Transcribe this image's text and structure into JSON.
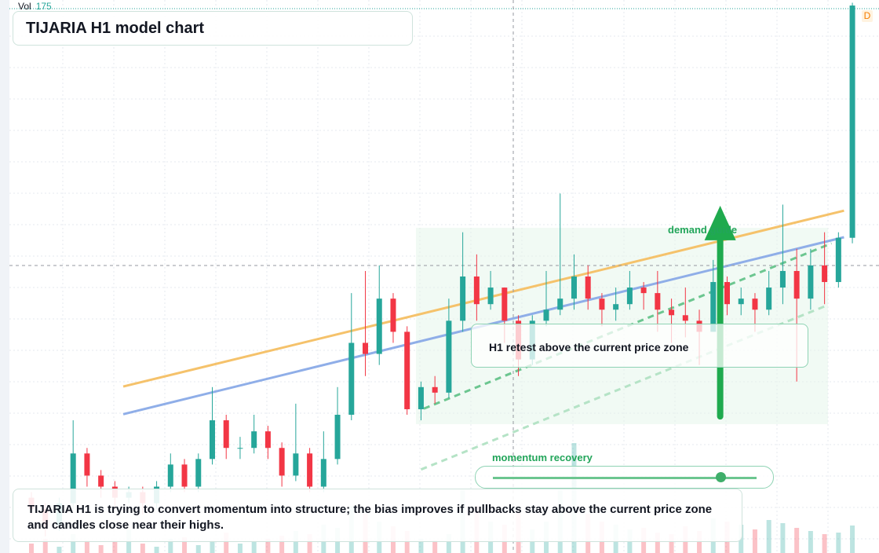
{
  "chart_data": {
    "type": "candlestick",
    "title": "TIJARIA H1 model chart",
    "volume_label": "Vol",
    "badge": "D",
    "ylim": [
      0,
      100
    ],
    "volume_lim": [
      0,
      1000
    ],
    "up_color": "#26a69a",
    "down_color": "#f23645",
    "open": [
      10,
      8,
      5,
      9,
      18,
      14,
      12,
      10,
      11,
      9,
      12,
      16,
      12,
      17,
      24,
      19,
      19,
      22,
      19,
      14,
      18,
      12,
      17,
      25,
      38,
      36,
      46,
      40,
      26,
      30,
      29,
      42,
      50,
      45,
      48,
      42,
      35,
      42,
      44,
      46,
      50,
      46,
      44,
      45,
      48,
      47,
      44,
      43,
      42,
      40,
      49,
      45,
      46,
      44,
      48,
      51,
      46,
      52,
      49,
      57
    ],
    "high": [
      11,
      9,
      10,
      24,
      19,
      15,
      13,
      12,
      12,
      13,
      18,
      17,
      18,
      30,
      25,
      21,
      25,
      23,
      20,
      27,
      19,
      22,
      30,
      47,
      51,
      52,
      47,
      41,
      31,
      32,
      46,
      58,
      54,
      51,
      48,
      43,
      43,
      51,
      65,
      54,
      52,
      47,
      48,
      51,
      49,
      51,
      46,
      48,
      44,
      53,
      50,
      48,
      47,
      51,
      63,
      55,
      55,
      58,
      58,
      99.5
    ],
    "low": [
      7,
      3,
      4,
      8,
      12,
      10,
      8,
      9,
      7,
      8,
      11,
      11,
      11,
      16,
      17,
      17,
      18,
      17,
      12,
      13,
      11,
      11,
      16,
      24,
      32,
      34,
      38,
      25,
      24,
      27,
      28,
      40,
      42,
      44,
      38,
      32,
      34,
      41,
      43,
      44,
      44,
      41,
      42,
      44,
      44,
      40,
      38,
      39,
      34,
      40,
      43,
      43,
      40,
      43,
      45,
      31,
      44,
      45,
      48,
      56
    ],
    "close": [
      8,
      5,
      9,
      18,
      14,
      12,
      10,
      11,
      9,
      12,
      16,
      12,
      17,
      24,
      19,
      19,
      22,
      19,
      14,
      18,
      12,
      17,
      25,
      38,
      36,
      46,
      40,
      26,
      30,
      29,
      42,
      50,
      45,
      48,
      42,
      35,
      42,
      44,
      46,
      50,
      46,
      44,
      45,
      48,
      47,
      44,
      43,
      42,
      40,
      49,
      45,
      46,
      44,
      48,
      51,
      46,
      52,
      49,
      57,
      99
    ],
    "volume": [
      60,
      90,
      40,
      120,
      80,
      50,
      70,
      150,
      60,
      40,
      90,
      100,
      50,
      80,
      130,
      60,
      70,
      90,
      110,
      140,
      120,
      180,
      160,
      300,
      250,
      200,
      170,
      140,
      90,
      80,
      120,
      400,
      300,
      200,
      180,
      260,
      150,
      200,
      400,
      700,
      250,
      200,
      180,
      150,
      160,
      130,
      120,
      170,
      140,
      220,
      200,
      180,
      150,
      210,
      190,
      160,
      140,
      120,
      130,
      175
    ],
    "lines": [
      {
        "color": "#f5c26b",
        "x": [
          6.6,
          58.4
        ],
        "y": [
          30.1,
          61.9
        ]
      },
      {
        "color": "#8faee8",
        "x": [
          6.6,
          58.4
        ],
        "y": [
          25.1,
          57.1
        ]
      },
      {
        "color": "#6cc690",
        "x": [
          28.2,
          57.5
        ],
        "y": [
          26.1,
          56.0
        ],
        "dash": true
      },
      {
        "color": "#b5e3c6",
        "x": [
          28.0,
          57.0
        ],
        "y": [
          15.1,
          44.6
        ],
        "dash": true
      }
    ],
    "arrow": {
      "x": 49.5,
      "y": [
        24.7,
        62.8
      ],
      "color": "#1faa4e"
    },
    "annotations": {
      "zone": "demand guide",
      "retest": "H1 retest above the current price zone",
      "momentum": "momentum recovery",
      "note": "TIJARIA H1 is trying to convert momentum into structure; the bias improves if pullbacks stay above the current price zone and candles close near their highs."
    }
  }
}
